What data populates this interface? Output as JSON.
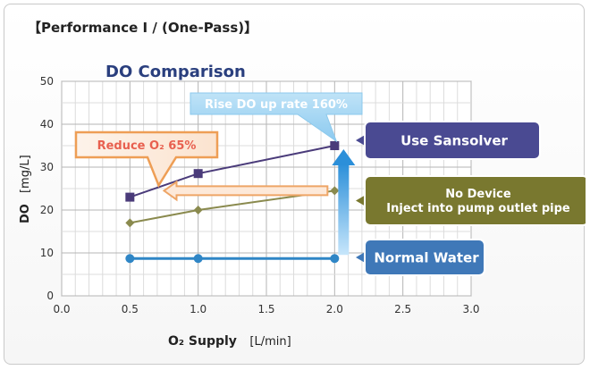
{
  "header": {
    "text": "【Performance Ⅰ / (One-Pass)】"
  },
  "chart_data": {
    "type": "line",
    "title": "DO Comparison",
    "xlabel_main": "O₂ Supply",
    "xlabel_unit": "[L/min]",
    "ylabel_main": "DO",
    "ylabel_unit": "[mg/L]",
    "xlim": [
      0.0,
      3.0
    ],
    "ylim": [
      0,
      50
    ],
    "xticks": [
      "0.0",
      "0.5",
      "1.0",
      "1.5",
      "2.0",
      "2.5",
      "3.0"
    ],
    "yticks": [
      "0",
      "10",
      "20",
      "30",
      "40",
      "50"
    ],
    "grid": true,
    "series": [
      {
        "name": "Use Sansolver",
        "color": "#4a3b7a",
        "marker": "square",
        "points": [
          [
            0.5,
            23
          ],
          [
            1.0,
            28.5
          ],
          [
            2.0,
            35
          ]
        ]
      },
      {
        "name": "No Device\nInject into pump outlet pipe",
        "color": "#8a8a4e",
        "marker": "diamond",
        "points": [
          [
            0.5,
            17
          ],
          [
            1.0,
            20
          ],
          [
            2.0,
            24.5
          ]
        ]
      },
      {
        "name": "Normal Water",
        "color": "#2f86c6",
        "marker": "circle",
        "points": [
          [
            0.5,
            8.7
          ],
          [
            1.0,
            8.7
          ],
          [
            2.0,
            8.7
          ]
        ]
      }
    ],
    "annotations": {
      "rise": "Rise DO up rate 160%",
      "reduce": "Reduce O₂ 65%"
    },
    "legend_boxes": [
      {
        "label": "Use Sansolver",
        "color": "#4a4a92"
      },
      {
        "label": "No Device\nInject into pump outlet pipe",
        "color": "#79782f"
      },
      {
        "label": "Normal Water",
        "color": "#3f78b8"
      }
    ]
  }
}
